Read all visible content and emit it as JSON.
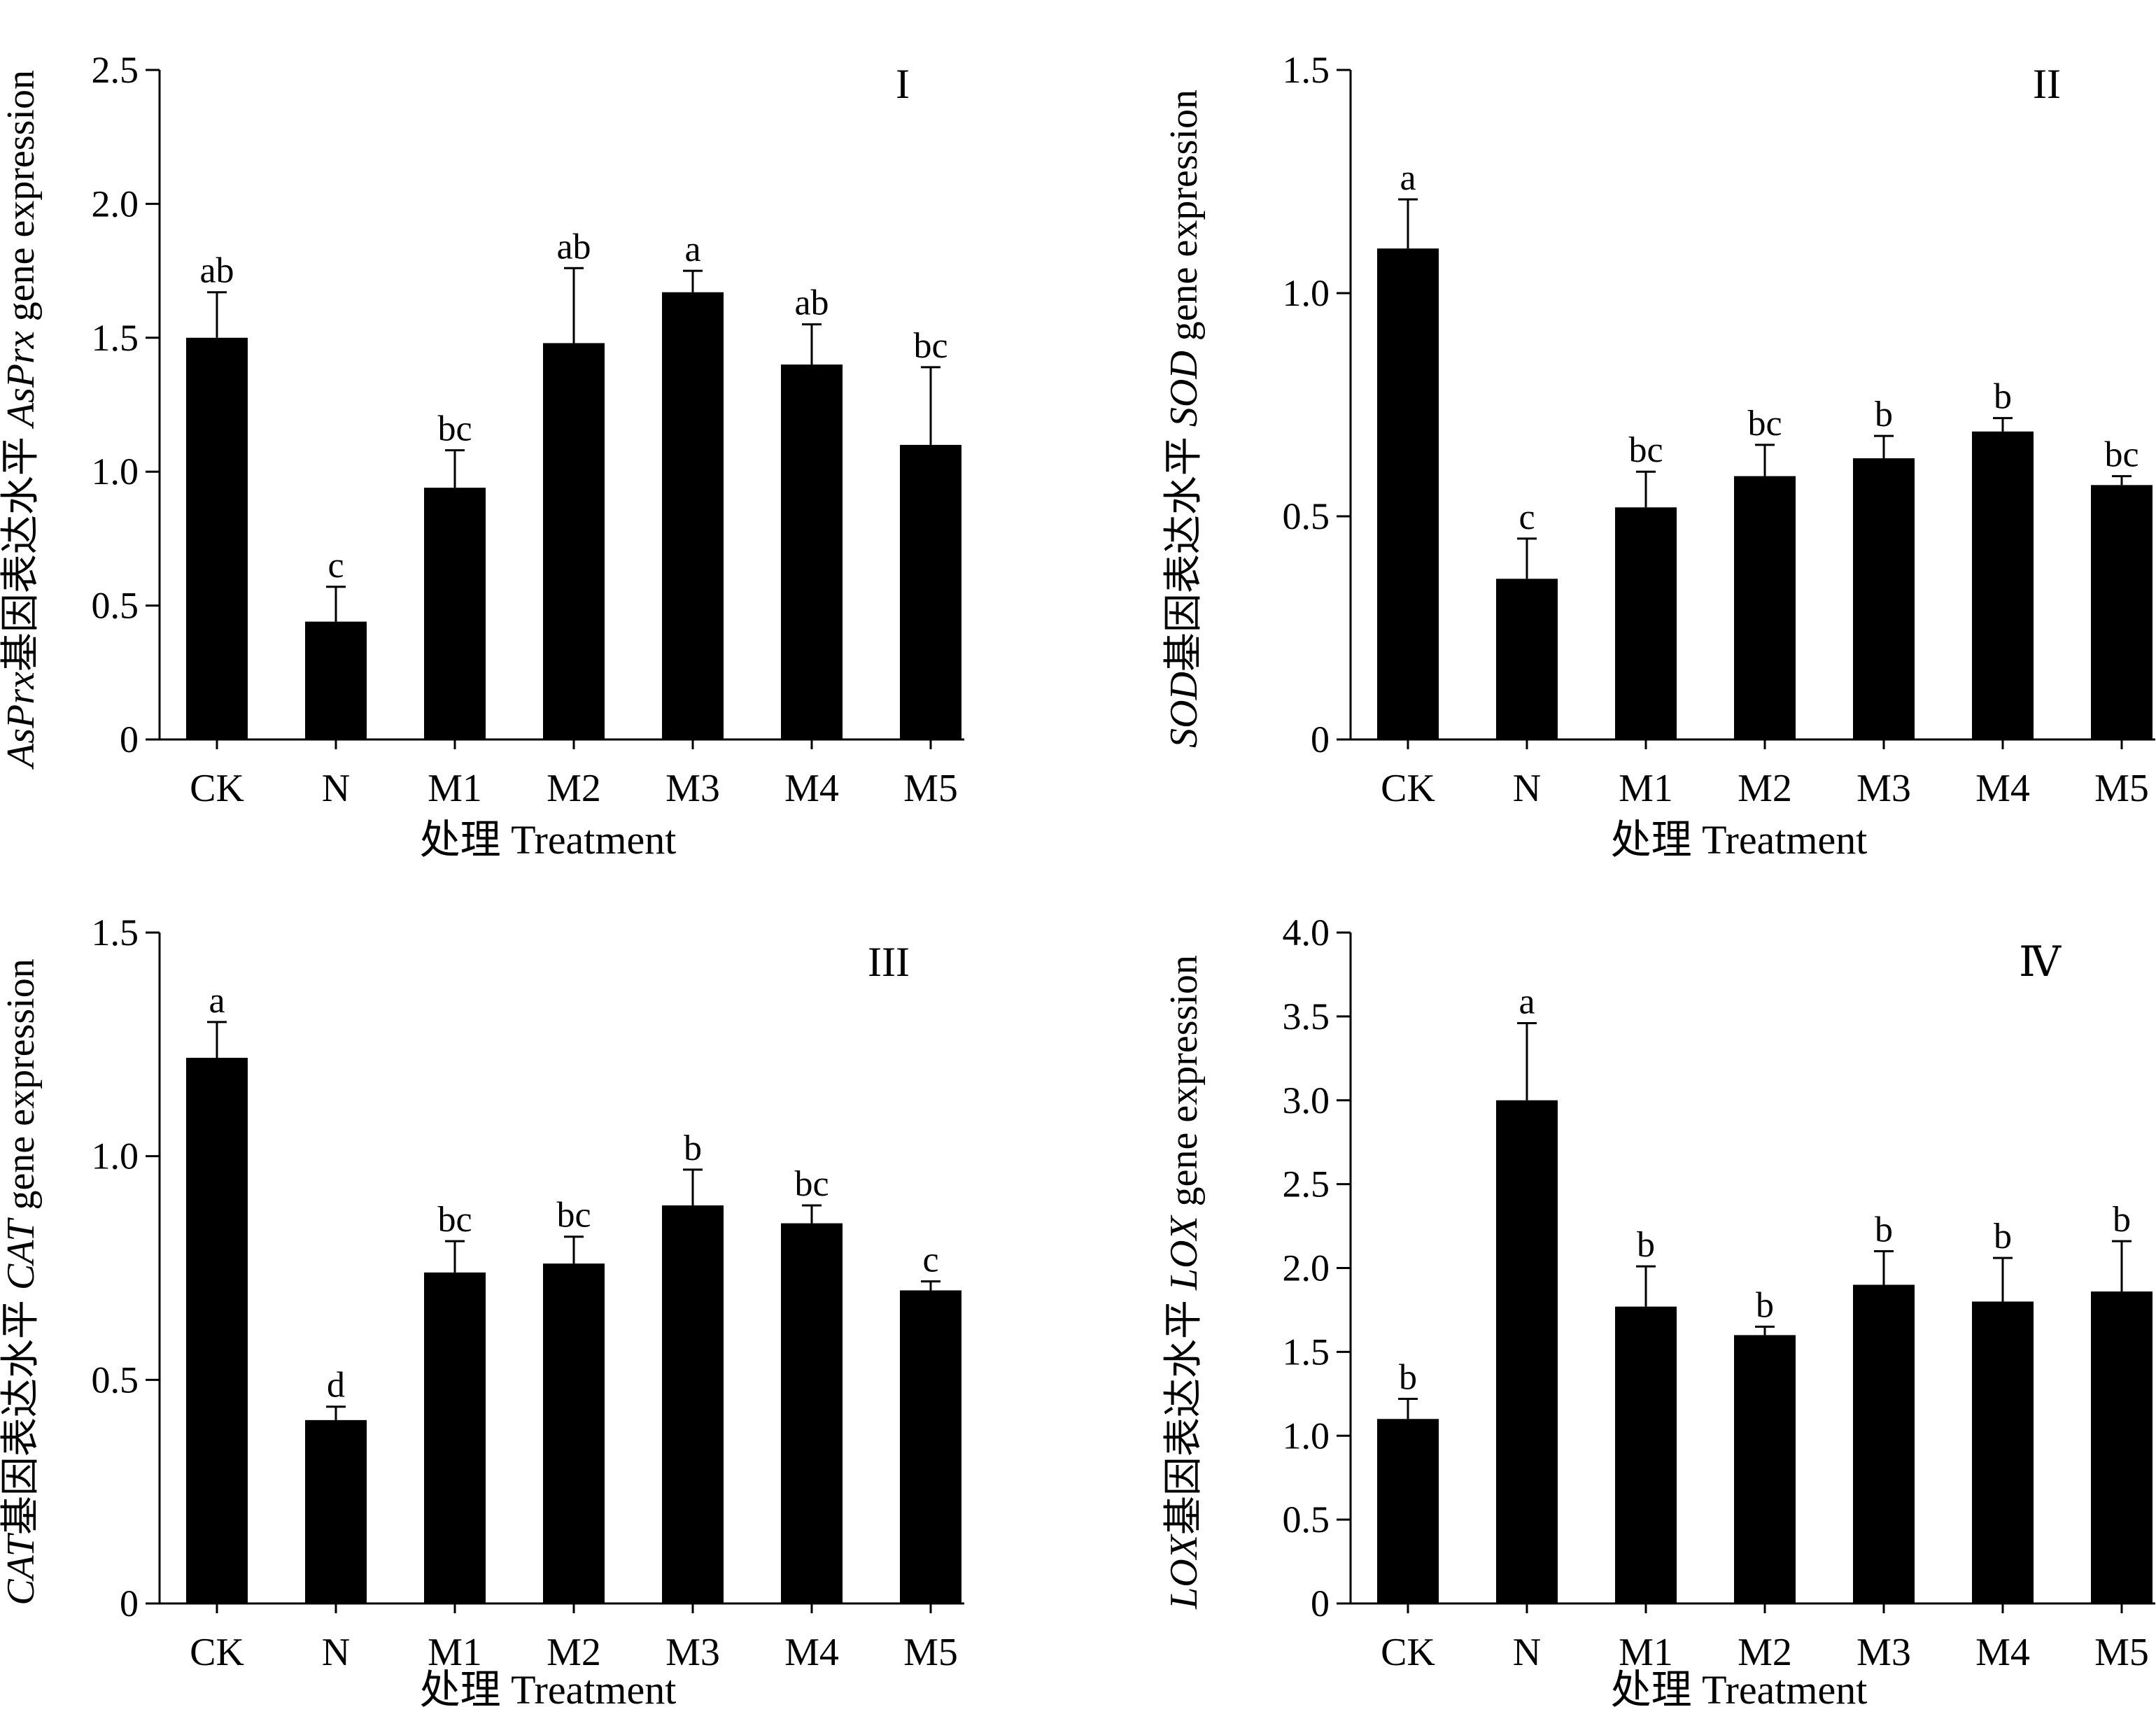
{
  "chart_data": [
    {
      "type": "bar",
      "panel_label": "I",
      "categories": [
        "CK",
        "N",
        "M1",
        "M2",
        "M3",
        "M4",
        "M5"
      ],
      "values": [
        1.5,
        0.44,
        0.94,
        1.48,
        1.67,
        1.4,
        1.1
      ],
      "errors": [
        0.17,
        0.13,
        0.14,
        0.28,
        0.08,
        0.15,
        0.29
      ],
      "significance": [
        "ab",
        "c",
        "bc",
        "ab",
        "a",
        "ab",
        "bc"
      ],
      "ylim": [
        0,
        2.5
      ],
      "yticks": [
        0,
        0.5,
        1.0,
        1.5,
        2.0,
        2.5
      ],
      "ytick_labels": [
        "0",
        "0.5",
        "1.0",
        "1.5",
        "2.0",
        "2.5"
      ],
      "xlabel": "处理 Treatment",
      "ylabel_italic": "AsPrx",
      "ylabel_cn": "基因表达水平 ",
      "ylabel_italic2": "AsPrx",
      "ylabel_en": " gene expression"
    },
    {
      "type": "bar",
      "panel_label": "II",
      "categories": [
        "CK",
        "N",
        "M1",
        "M2",
        "M3",
        "M4",
        "M5"
      ],
      "values": [
        1.1,
        0.36,
        0.52,
        0.59,
        0.63,
        0.69,
        0.57
      ],
      "errors": [
        0.11,
        0.09,
        0.08,
        0.07,
        0.05,
        0.03,
        0.02
      ],
      "significance": [
        "a",
        "c",
        "bc",
        "bc",
        "b",
        "b",
        "bc"
      ],
      "ylim": [
        0,
        1.5
      ],
      "yticks": [
        0,
        0.5,
        1.0,
        1.5
      ],
      "ytick_labels": [
        "0",
        "0.5",
        "1.0",
        "1.5"
      ],
      "xlabel": "处理 Treatment",
      "ylabel_italic": "SOD",
      "ylabel_cn": "基因表达水平 ",
      "ylabel_italic2": "SOD",
      "ylabel_en": " gene expression"
    },
    {
      "type": "bar",
      "panel_label": "III",
      "categories": [
        "CK",
        "N",
        "M1",
        "M2",
        "M3",
        "M4",
        "M5"
      ],
      "values": [
        1.22,
        0.41,
        0.74,
        0.76,
        0.89,
        0.85,
        0.7
      ],
      "errors": [
        0.08,
        0.03,
        0.07,
        0.06,
        0.08,
        0.04,
        0.02
      ],
      "significance": [
        "a",
        "d",
        "bc",
        "bc",
        "b",
        "bc",
        "c"
      ],
      "ylim": [
        0,
        1.5
      ],
      "yticks": [
        0,
        0.5,
        1.0,
        1.5
      ],
      "ytick_labels": [
        "0",
        "0.5",
        "1.0",
        "1.5"
      ],
      "xlabel": "处理 Treatment",
      "ylabel_italic": "CAT",
      "ylabel_cn": "基因表达水平 ",
      "ylabel_italic2": "CAT",
      "ylabel_en": " gene expression"
    },
    {
      "type": "bar",
      "panel_label": "Ⅳ",
      "categories": [
        "CK",
        "N",
        "M1",
        "M2",
        "M3",
        "M4",
        "M5"
      ],
      "values": [
        1.1,
        3.0,
        1.77,
        1.6,
        1.9,
        1.8,
        1.86
      ],
      "errors": [
        0.12,
        0.46,
        0.24,
        0.05,
        0.2,
        0.26,
        0.3
      ],
      "significance": [
        "b",
        "a",
        "b",
        "b",
        "b",
        "b",
        "b"
      ],
      "ylim": [
        0,
        4.0
      ],
      "yticks": [
        0,
        0.5,
        1.0,
        1.5,
        2.0,
        2.5,
        3.0,
        3.5,
        4.0
      ],
      "ytick_labels": [
        "0",
        "0.5",
        "1.0",
        "1.5",
        "2.0",
        "2.5",
        "3.0",
        "3.5",
        "4.0"
      ],
      "xlabel": "处理 Treatment",
      "ylabel_italic": "LOX",
      "ylabel_cn": "基因表达水平 ",
      "ylabel_italic2": "LOX",
      "ylabel_en": " gene expression"
    }
  ]
}
